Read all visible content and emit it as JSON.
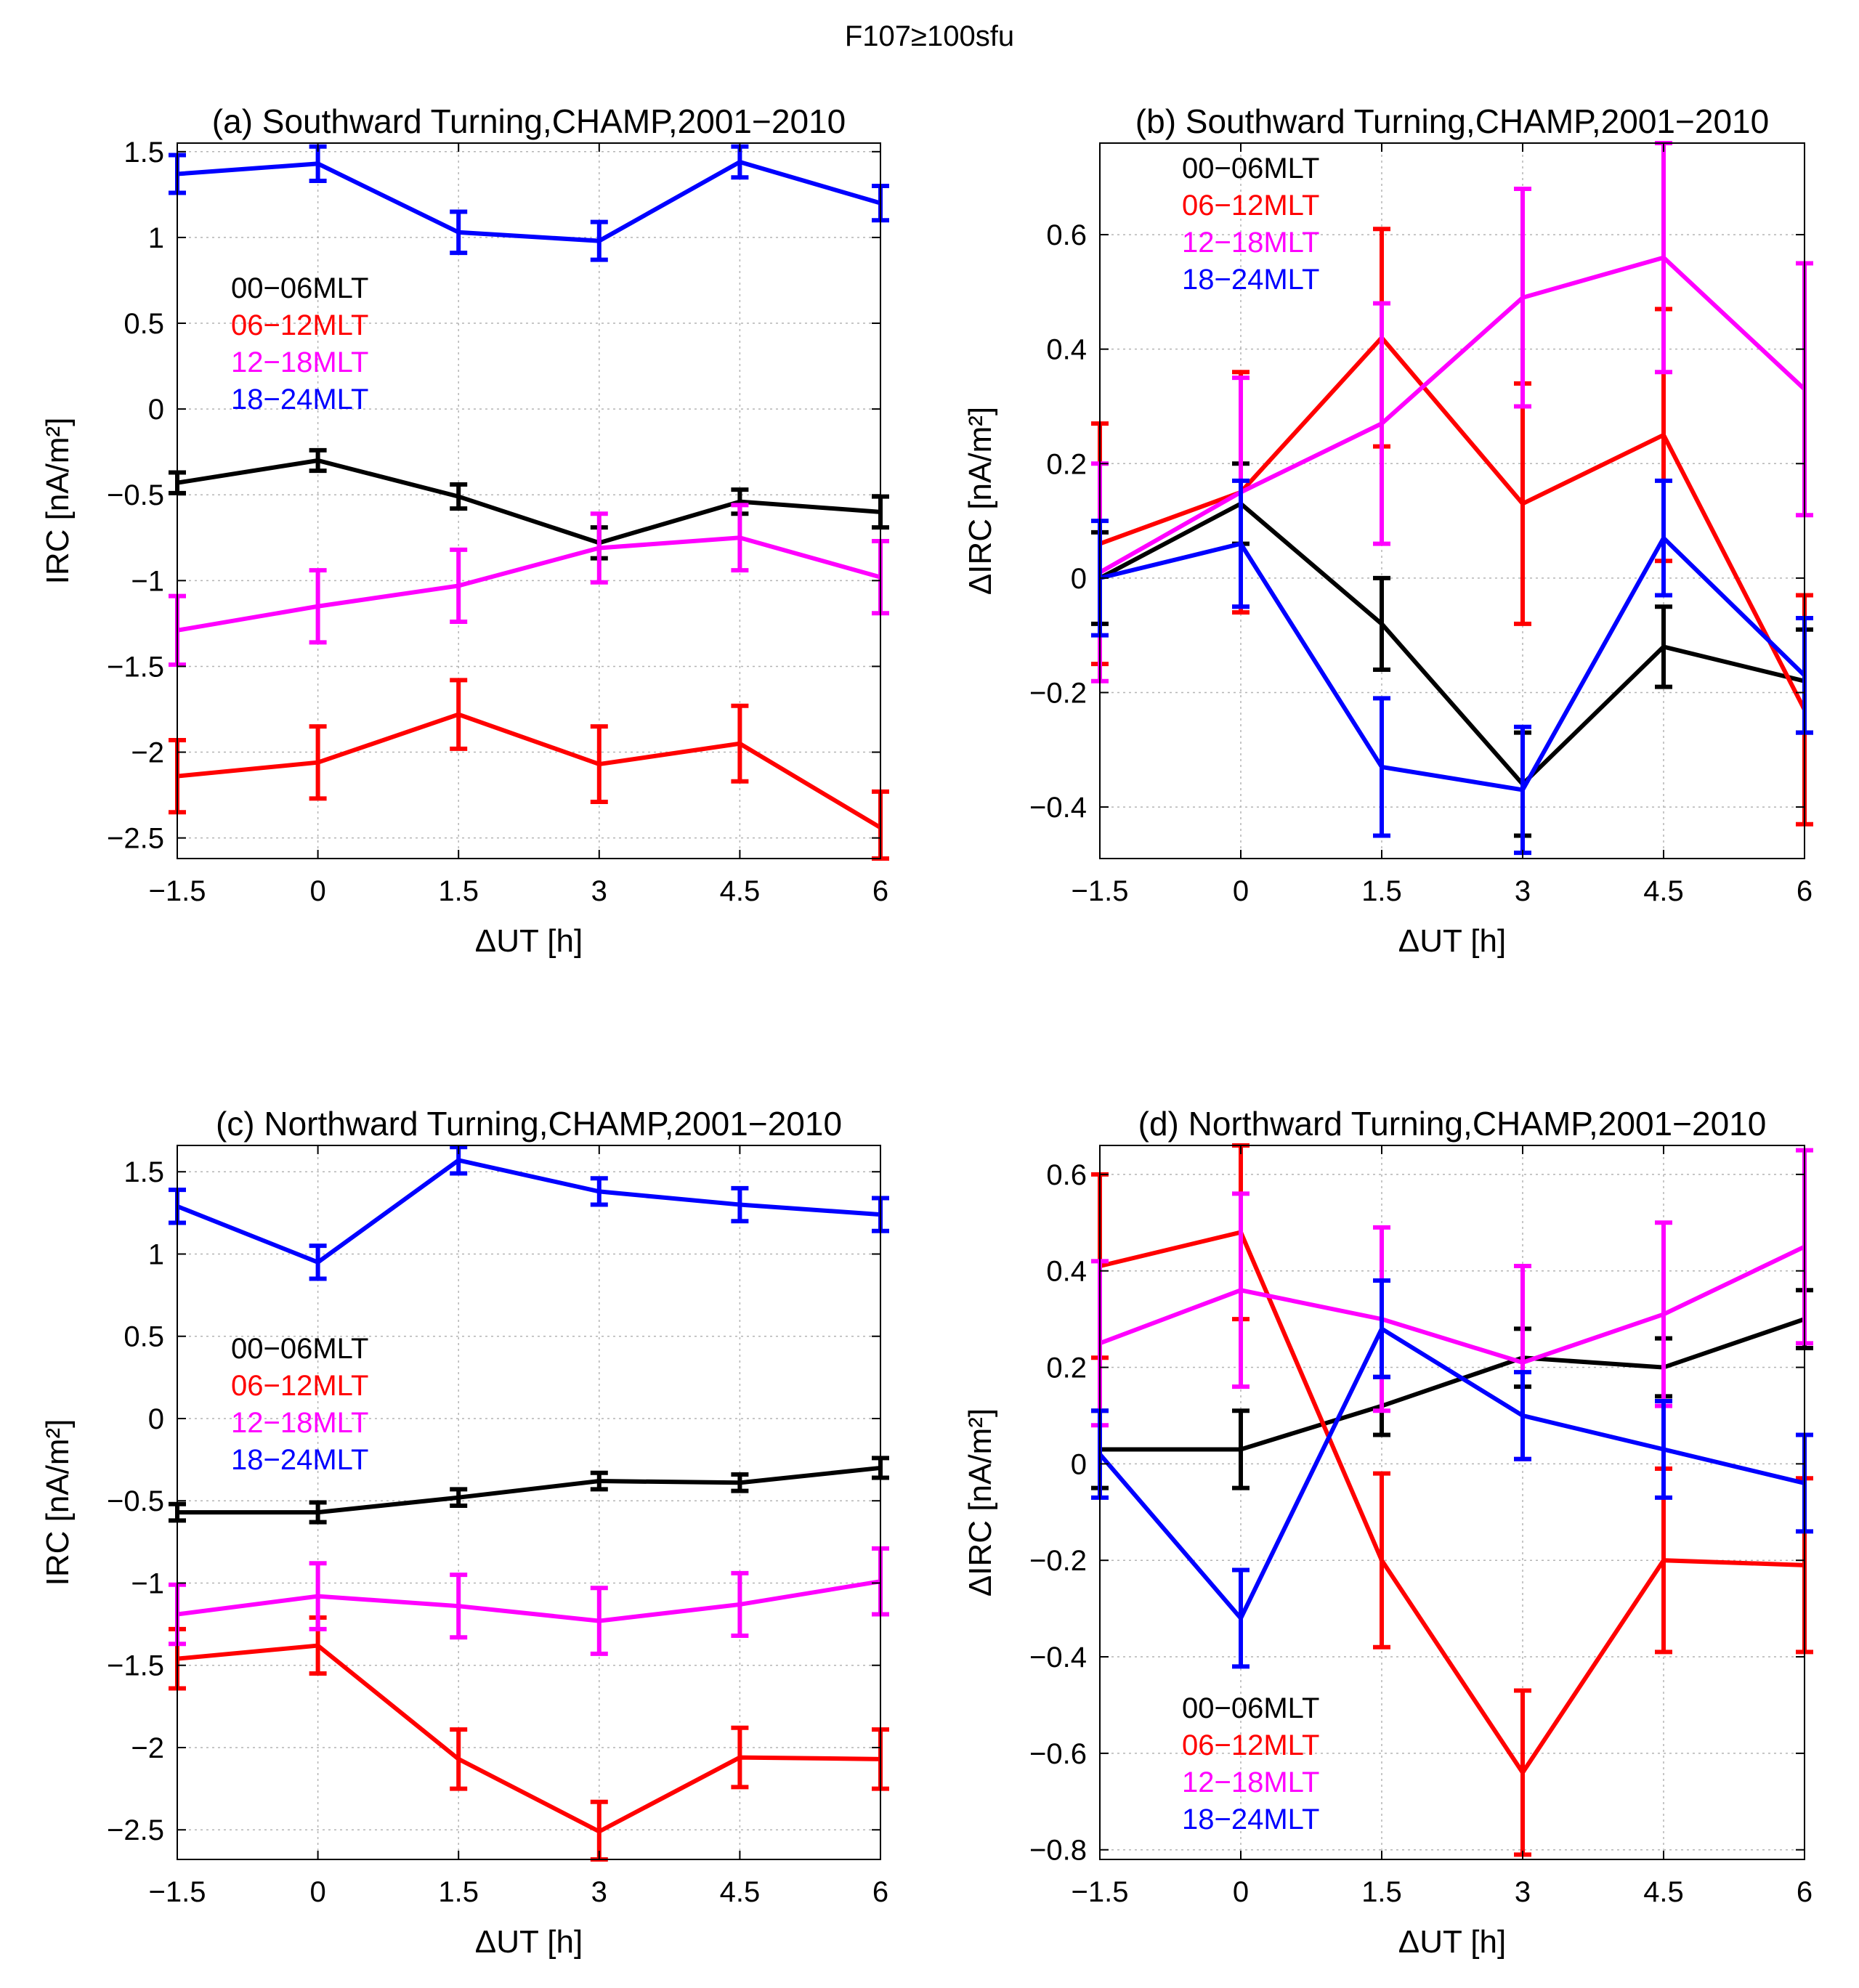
{
  "figure": {
    "title": "F107≥100sfu"
  },
  "colors": {
    "00-06MLT": "#000000",
    "06-12MLT": "#ff0000",
    "12-18MLT": "#ff00ff",
    "18-24MLT": "#0000ff"
  },
  "chart_data": [
    {
      "id": "a",
      "type": "line",
      "title": "(a) Southward Turning,CHAMP,2001−2010",
      "xlabel": "ΔUT [h]",
      "ylabel": "IRC [nA/m²]",
      "x": [
        -1.5,
        0,
        1.5,
        3,
        4.5,
        6
      ],
      "x_ticks": [
        "−1.5",
        "0",
        "1.5",
        "3",
        "4.5",
        "6"
      ],
      "xlim": [
        -1.5,
        6
      ],
      "ylim": [
        -2.62,
        1.55
      ],
      "y_ticks": [
        1.5,
        1,
        0.5,
        0,
        -0.5,
        -1,
        -1.5,
        -2,
        -2.5
      ],
      "y_tick_labels": [
        "1.5",
        "1",
        "0.5",
        "0",
        "−0.5",
        "−1",
        "−1.5",
        "−2",
        "−2.5"
      ],
      "grid": true,
      "legend": {
        "placement": "upper-left",
        "entries": [
          "00−06MLT",
          "06−12MLT",
          "12−18MLT",
          "18−24MLT"
        ]
      },
      "series": [
        {
          "name": "00−06MLT",
          "key": "00-06MLT",
          "values": [
            -0.43,
            -0.3,
            -0.51,
            -0.78,
            -0.54,
            -0.6
          ],
          "errors": [
            0.06,
            0.06,
            0.07,
            0.09,
            0.07,
            0.09
          ]
        },
        {
          "name": "06−12MLT",
          "key": "06-12MLT",
          "values": [
            -2.14,
            -2.06,
            -1.78,
            -2.07,
            -1.95,
            -2.44
          ],
          "errors": [
            0.21,
            0.21,
            0.2,
            0.22,
            0.22,
            0.21
          ]
        },
        {
          "name": "12−18MLT",
          "key": "12-18MLT",
          "values": [
            -1.29,
            -1.15,
            -1.03,
            -0.81,
            -0.75,
            -0.98
          ],
          "errors": [
            0.2,
            0.21,
            0.21,
            0.2,
            0.19,
            0.21
          ]
        },
        {
          "name": "18−24MLT",
          "key": "18-24MLT",
          "values": [
            1.37,
            1.43,
            1.03,
            0.98,
            1.44,
            1.2
          ],
          "errors": [
            0.11,
            0.1,
            0.12,
            0.11,
            0.09,
            0.1
          ]
        }
      ]
    },
    {
      "id": "b",
      "type": "line",
      "title": "(b) Southward Turning,CHAMP,2001−2010",
      "xlabel": "ΔUT [h]",
      "ylabel": "ΔIRC [nA/m²]",
      "x": [
        -1.5,
        0,
        1.5,
        3,
        4.5,
        6
      ],
      "x_ticks": [
        "−1.5",
        "0",
        "1.5",
        "3",
        "4.5",
        "6"
      ],
      "xlim": [
        -1.5,
        6
      ],
      "ylim": [
        -0.49,
        0.76
      ],
      "y_ticks": [
        0.6,
        0.4,
        0.2,
        0,
        -0.2,
        -0.4
      ],
      "y_tick_labels": [
        "0.6",
        "0.4",
        "0.2",
        "0",
        "−0.2",
        "−0.4"
      ],
      "grid": true,
      "legend": {
        "placement": "upper-left",
        "entries": [
          "00−06MLT",
          "06−12MLT",
          "12−18MLT",
          "18−24MLT"
        ]
      },
      "series": [
        {
          "name": "00−06MLT",
          "key": "00-06MLT",
          "values": [
            0.0,
            0.13,
            -0.08,
            -0.36,
            -0.12,
            -0.18
          ],
          "errors": [
            0.08,
            0.07,
            0.08,
            0.09,
            0.07,
            0.09
          ]
        },
        {
          "name": "06−12MLT",
          "key": "06-12MLT",
          "values": [
            0.06,
            0.15,
            0.42,
            0.13,
            0.25,
            -0.23
          ],
          "errors": [
            0.21,
            0.21,
            0.19,
            0.21,
            0.22,
            0.2
          ]
        },
        {
          "name": "12−18MLT",
          "key": "12-18MLT",
          "values": [
            0.01,
            0.15,
            0.27,
            0.49,
            0.56,
            0.33
          ],
          "errors": [
            0.19,
            0.2,
            0.21,
            0.19,
            0.2,
            0.22
          ]
        },
        {
          "name": "18−24MLT",
          "key": "18-24MLT",
          "values": [
            0.0,
            0.06,
            -0.33,
            -0.37,
            0.07,
            -0.17
          ],
          "errors": [
            0.1,
            0.11,
            0.12,
            0.11,
            0.1,
            0.1
          ]
        }
      ]
    },
    {
      "id": "c",
      "type": "line",
      "title": "(c) Northward Turning,CHAMP,2001−2010",
      "xlabel": "ΔUT [h]",
      "ylabel": "IRC [nA/m²]",
      "x": [
        -1.5,
        0,
        1.5,
        3,
        4.5,
        6
      ],
      "x_ticks": [
        "−1.5",
        "0",
        "1.5",
        "3",
        "4.5",
        "6"
      ],
      "xlim": [
        -1.5,
        6
      ],
      "ylim": [
        -2.68,
        1.66
      ],
      "y_ticks": [
        1.5,
        1,
        0.5,
        0,
        -0.5,
        -1,
        -1.5,
        -2,
        -2.5
      ],
      "y_tick_labels": [
        "1.5",
        "1",
        "0.5",
        "0",
        "−0.5",
        "−1",
        "−1.5",
        "−2",
        "−2.5"
      ],
      "grid": true,
      "legend": {
        "placement": "left-middle",
        "entries": [
          "00−06MLT",
          "06−12MLT",
          "12−18MLT",
          "18−24MLT"
        ]
      },
      "series": [
        {
          "name": "00−06MLT",
          "key": "00-06MLT",
          "values": [
            -0.57,
            -0.57,
            -0.48,
            -0.38,
            -0.39,
            -0.3
          ],
          "errors": [
            0.05,
            0.06,
            0.05,
            0.05,
            0.05,
            0.06
          ]
        },
        {
          "name": "06−12MLT",
          "key": "06-12MLT",
          "values": [
            -1.46,
            -1.38,
            -2.07,
            -2.51,
            -2.06,
            -2.07
          ],
          "errors": [
            0.18,
            0.17,
            0.18,
            0.18,
            0.18,
            0.18
          ]
        },
        {
          "name": "12−18MLT",
          "key": "12-18MLT",
          "values": [
            -1.19,
            -1.08,
            -1.14,
            -1.23,
            -1.13,
            -0.99
          ],
          "errors": [
            0.18,
            0.2,
            0.19,
            0.2,
            0.19,
            0.2
          ]
        },
        {
          "name": "18−24MLT",
          "key": "18-24MLT",
          "values": [
            1.29,
            0.95,
            1.57,
            1.38,
            1.3,
            1.24
          ],
          "errors": [
            0.1,
            0.1,
            0.08,
            0.08,
            0.1,
            0.1
          ]
        }
      ]
    },
    {
      "id": "d",
      "type": "line",
      "title": "(d) Northward Turning,CHAMP,2001−2010",
      "xlabel": "ΔUT [h]",
      "ylabel": "ΔIRC [nA/m²]",
      "x": [
        -1.5,
        0,
        1.5,
        3,
        4.5,
        6
      ],
      "x_ticks": [
        "−1.5",
        "0",
        "1.5",
        "3",
        "4.5",
        "6"
      ],
      "xlim": [
        -1.5,
        6
      ],
      "ylim": [
        -0.82,
        0.66
      ],
      "y_ticks": [
        0.6,
        0.4,
        0.2,
        0,
        -0.2,
        -0.4,
        -0.6,
        -0.8
      ],
      "y_tick_labels": [
        "0.6",
        "0.4",
        "0.2",
        "0",
        "−0.2",
        "−0.4",
        "−0.6",
        "−0.8"
      ],
      "grid": true,
      "legend": {
        "placement": "lower-left",
        "entries": [
          "00−06MLT",
          "06−12MLT",
          "12−18MLT",
          "18−24MLT"
        ]
      },
      "series": [
        {
          "name": "00−06MLT",
          "key": "00-06MLT",
          "values": [
            0.03,
            0.03,
            0.12,
            0.22,
            0.2,
            0.3
          ],
          "errors": [
            0.08,
            0.08,
            0.06,
            0.06,
            0.06,
            0.06
          ]
        },
        {
          "name": "06−12MLT",
          "key": "06-12MLT",
          "values": [
            0.41,
            0.48,
            -0.2,
            -0.64,
            -0.2,
            -0.21
          ],
          "errors": [
            0.19,
            0.18,
            0.18,
            0.17,
            0.19,
            0.18
          ]
        },
        {
          "name": "12−18MLT",
          "key": "12-18MLT",
          "values": [
            0.25,
            0.36,
            0.3,
            0.21,
            0.31,
            0.45
          ],
          "errors": [
            0.17,
            0.2,
            0.19,
            0.2,
            0.19,
            0.2
          ]
        },
        {
          "name": "18−24MLT",
          "key": "18-24MLT",
          "values": [
            0.02,
            -0.32,
            0.28,
            0.1,
            0.03,
            -0.04
          ],
          "errors": [
            0.09,
            0.1,
            0.1,
            0.09,
            0.1,
            0.1
          ]
        }
      ]
    }
  ]
}
